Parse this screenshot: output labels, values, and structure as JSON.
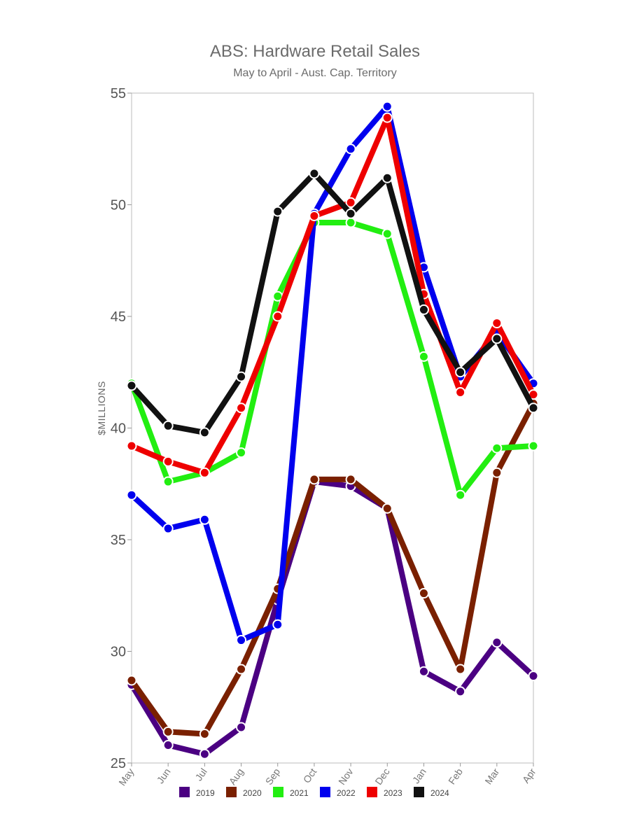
{
  "chart_data": {
    "type": "line",
    "title": "ABS: Hardware Retail Sales",
    "subtitle": "May to April - Aust. Cap. Territory",
    "ylabel": "$MILLIONS",
    "xlabel": "",
    "ylim": [
      25,
      55
    ],
    "yticks": [
      25,
      30,
      35,
      40,
      45,
      50,
      55
    ],
    "categories": [
      "May",
      "Jun",
      "Jul",
      "Aug",
      "Sep",
      "Oct",
      "Nov",
      "Dec",
      "Jan",
      "Feb",
      "Mar",
      "Apr"
    ],
    "grid": false,
    "legend_position": "bottom",
    "series": [
      {
        "name": "2019",
        "color": "#4b0082",
        "values": [
          28.5,
          25.8,
          25.4,
          26.6,
          32.3,
          37.6,
          37.4,
          36.4,
          29.1,
          28.2,
          30.4,
          28.9
        ]
      },
      {
        "name": "2020",
        "color": "#7a2000",
        "values": [
          28.7,
          26.4,
          26.3,
          29.2,
          32.8,
          37.7,
          37.7,
          36.4,
          32.6,
          29.2,
          38.0,
          41.1
        ]
      },
      {
        "name": "2021",
        "color": "#22ee11",
        "values": [
          42.0,
          37.6,
          38.0,
          38.9,
          45.9,
          49.2,
          49.2,
          48.7,
          43.2,
          37.0,
          39.1,
          39.2
        ]
      },
      {
        "name": "2022",
        "color": "#0000ee",
        "values": [
          37.0,
          35.5,
          35.9,
          30.5,
          31.2,
          49.6,
          52.5,
          54.4,
          47.2,
          42.3,
          44.3,
          42.0
        ]
      },
      {
        "name": "2023",
        "color": "#ee0000",
        "values": [
          39.2,
          38.5,
          38.0,
          40.9,
          45.0,
          49.5,
          50.1,
          53.9,
          46.0,
          41.6,
          44.7,
          41.5
        ]
      },
      {
        "name": "2024",
        "color": "#111111",
        "values": [
          41.9,
          40.1,
          39.8,
          42.3,
          49.7,
          51.4,
          49.6,
          51.2,
          45.3,
          42.5,
          44.0,
          40.9
        ]
      }
    ]
  }
}
